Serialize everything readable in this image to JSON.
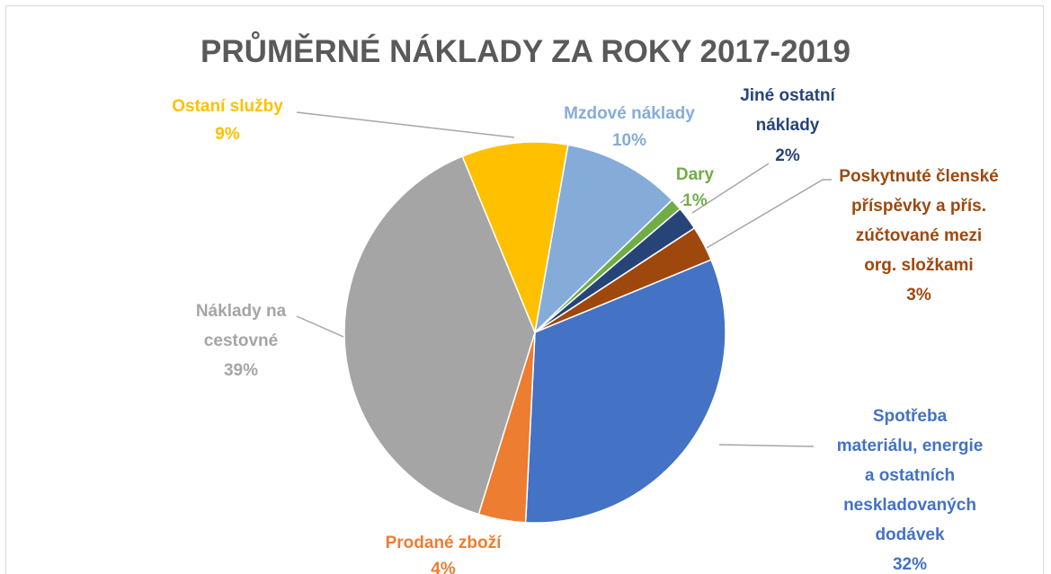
{
  "chart_data": {
    "type": "pie",
    "title": "PRŮMĚRNÉ NÁKLADY ZA ROKY 2017-2019",
    "categories": [
      "Mzdové náklady",
      "Dary",
      "Jiné ostatní\nnáklady",
      "Poskytnuté členské\npříspěvky a přís.\nzúčtované mezi\norg. složkami",
      "Spotřeba\nmateriálu, energie\na ostatních\nneskladovaných\ndodávek",
      "Prodané zboží",
      "Náklady na\ncestovné",
      "Ostaní služby"
    ],
    "values": [
      10,
      1,
      2,
      3,
      32,
      4,
      39,
      9
    ],
    "value_labels": [
      "10%",
      "1%",
      "2%",
      "3%",
      "32%",
      "4%",
      "39%",
      "9%"
    ],
    "colors": [
      "#85acd9",
      "#70ad47",
      "#264478",
      "#9e480e",
      "#4472c4",
      "#ed7d31",
      "#a5a5a5",
      "#ffc000"
    ]
  }
}
